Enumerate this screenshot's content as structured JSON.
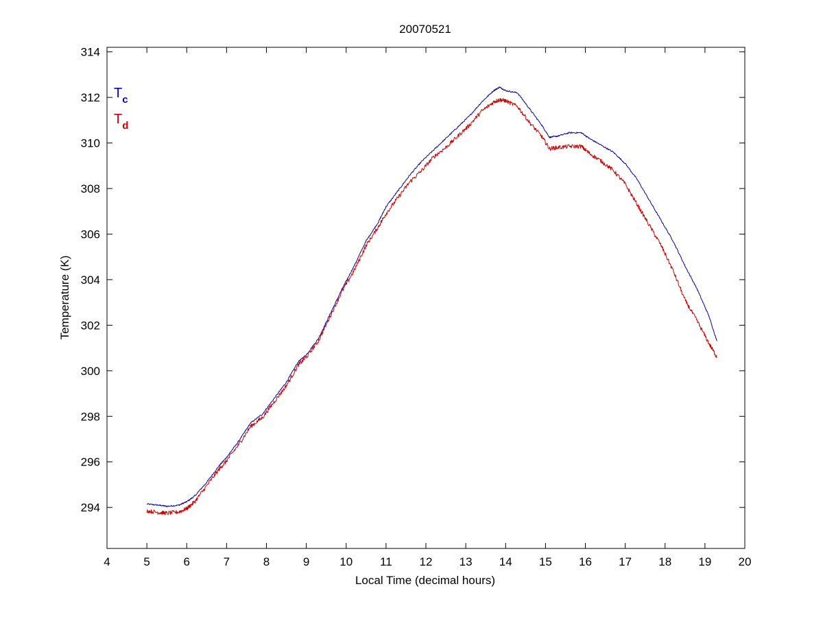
{
  "chart_data": {
    "type": "line",
    "title": "20070521",
    "xlabel": "Local Time (decimal hours)",
    "ylabel": "Temperature (K)",
    "xlim": [
      4,
      20
    ],
    "ylim": [
      292.2,
      314.2
    ],
    "xticks": [
      4,
      5,
      6,
      7,
      8,
      9,
      10,
      11,
      12,
      13,
      14,
      15,
      16,
      17,
      18,
      19,
      20
    ],
    "yticks": [
      294,
      296,
      298,
      300,
      302,
      304,
      306,
      308,
      310,
      312,
      314
    ],
    "grid": false,
    "legend": {
      "placement": "top-left",
      "entries": [
        {
          "main": "T",
          "sub": "c",
          "color": "#0000cc"
        },
        {
          "main": "T",
          "sub": "d",
          "color": "#cc0000"
        }
      ]
    },
    "series": [
      {
        "color": "#0000aa",
        "x": [
          5.0,
          5.3,
          5.5,
          5.8,
          6.0,
          6.2,
          6.5,
          6.8,
          7.0,
          7.3,
          7.6,
          7.9,
          8.2,
          8.5,
          8.8,
          9.0,
          9.3,
          9.6,
          9.9,
          10.2,
          10.5,
          10.8,
          11.0,
          11.3,
          11.6,
          11.9,
          12.2,
          12.5,
          12.8,
          13.1,
          13.4,
          13.7,
          13.85,
          14.0,
          14.3,
          14.6,
          14.9,
          15.1,
          15.3,
          15.6,
          15.9,
          16.1,
          16.4,
          16.7,
          17.0,
          17.3,
          17.6,
          17.9,
          18.2,
          18.5,
          18.8,
          19.1,
          19.3
        ],
        "y": [
          294.15,
          294.1,
          294.05,
          294.1,
          294.25,
          294.5,
          295.1,
          295.8,
          296.2,
          296.9,
          297.7,
          298.1,
          298.8,
          299.5,
          300.4,
          300.7,
          301.4,
          302.5,
          303.6,
          304.6,
          305.7,
          306.5,
          307.2,
          307.9,
          308.6,
          309.2,
          309.7,
          310.2,
          310.7,
          311.2,
          311.8,
          312.3,
          312.45,
          312.3,
          312.2,
          311.5,
          310.8,
          310.25,
          310.3,
          310.45,
          310.45,
          310.2,
          309.9,
          309.6,
          309.1,
          308.4,
          307.5,
          306.6,
          305.7,
          304.6,
          303.6,
          302.4,
          301.3
        ]
      },
      {
        "color": "#cc0000",
        "x": [
          5.0,
          5.3,
          5.5,
          5.8,
          6.0,
          6.2,
          6.5,
          6.8,
          7.0,
          7.3,
          7.6,
          7.9,
          8.2,
          8.5,
          8.8,
          9.0,
          9.3,
          9.6,
          9.9,
          10.2,
          10.5,
          10.8,
          11.0,
          11.3,
          11.6,
          11.9,
          12.2,
          12.5,
          12.8,
          13.1,
          13.4,
          13.7,
          13.85,
          14.0,
          14.3,
          14.6,
          14.9,
          15.1,
          15.3,
          15.6,
          15.9,
          16.1,
          16.4,
          16.7,
          17.0,
          17.3,
          17.6,
          17.9,
          18.2,
          18.5,
          18.8,
          19.1,
          19.3
        ],
        "y": [
          293.85,
          293.78,
          293.75,
          293.8,
          293.95,
          294.25,
          294.95,
          295.65,
          296.05,
          296.75,
          297.55,
          297.95,
          298.65,
          299.35,
          300.25,
          300.6,
          301.3,
          302.4,
          303.5,
          304.4,
          305.5,
          306.3,
          306.9,
          307.6,
          308.3,
          308.8,
          309.4,
          309.8,
          310.3,
          310.8,
          311.4,
          311.8,
          311.9,
          311.85,
          311.6,
          310.9,
          310.3,
          309.75,
          309.8,
          309.85,
          309.85,
          309.55,
          309.2,
          308.8,
          308.2,
          307.3,
          306.4,
          305.5,
          304.4,
          303.1,
          302.2,
          301.2,
          300.6
        ]
      }
    ]
  }
}
